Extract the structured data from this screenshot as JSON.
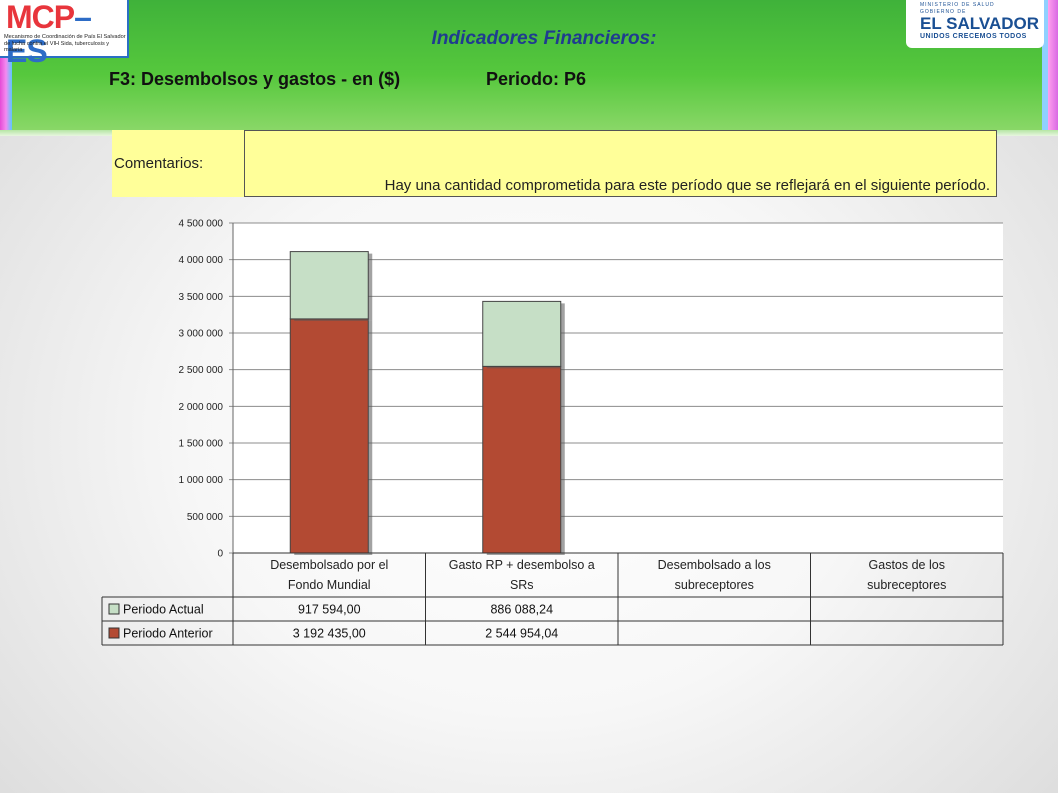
{
  "header": {
    "logo_left": {
      "brand_red": "MCP",
      "dash": "–",
      "brand_blue": "ES",
      "caption_line1": "Mecanismo de Coordinación de País El Salvador",
      "caption_line2": "de lucha contra el VIH Sida, tuberculosis y malaria"
    },
    "logo_right": {
      "line1": "MINISTERIO DE SALUD",
      "line2": "GOBIERNO DE",
      "line3": "EL SALVADOR",
      "line4": "UNIDOS CRECEMOS TODOS"
    },
    "title": "Indicadores Financieros:",
    "subtitle": "F3: Desembolsos y gastos - en ($)",
    "period": "Periodo: P6"
  },
  "comments": {
    "label": "Comentarios:",
    "text": "Hay una cantidad comprometida para este período que se reflejará en el siguiente período."
  },
  "colors": {
    "actual": "#c6dfc6",
    "anterior": "#b34a33",
    "title": "#1f3c8f",
    "comment_bg": "#ffff99"
  },
  "chart_data": {
    "type": "bar",
    "stacked": true,
    "categories": [
      [
        "Desembolsado por el",
        "Fondo Mundial"
      ],
      [
        "Gasto RP + desembolso a",
        "SRs"
      ],
      [
        "Desembolsado a los",
        "subreceptores"
      ],
      [
        "Gastos de los",
        "subreceptores"
      ]
    ],
    "series": [
      {
        "name": "Periodo Anterior",
        "values": [
          3192435.0,
          2544954.04,
          null,
          null
        ],
        "labels": [
          "3 192 435,00",
          "2 544 954,04",
          "",
          ""
        ]
      },
      {
        "name": "Periodo Actual",
        "values": [
          917594.0,
          886088.24,
          null,
          null
        ],
        "labels": [
          "917 594,00",
          "886 088,24",
          "",
          ""
        ]
      }
    ],
    "table_order": [
      "Periodo Actual",
      "Periodo Anterior"
    ],
    "ylim": [
      0,
      4500000
    ],
    "yticks": [
      {
        "v": 0,
        "t": "0"
      },
      {
        "v": 500000,
        "t": "500 000"
      },
      {
        "v": 1000000,
        "t": "1 000 000"
      },
      {
        "v": 1500000,
        "t": "1 500 000"
      },
      {
        "v": 2000000,
        "t": "2 000 000"
      },
      {
        "v": 2500000,
        "t": "2 500 000"
      },
      {
        "v": 3000000,
        "t": "3 000 000"
      },
      {
        "v": 3500000,
        "t": "3 500 000"
      },
      {
        "v": 4000000,
        "t": "4 000 000"
      },
      {
        "v": 4500000,
        "t": "4 500 000"
      }
    ],
    "grid": true,
    "legend": "data-table"
  }
}
